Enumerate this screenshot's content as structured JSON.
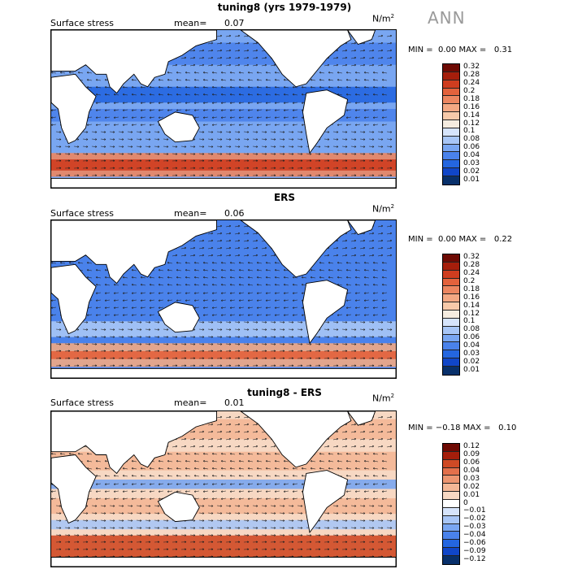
{
  "season_label": "ANN",
  "colors": {
    "positive_scale": [
      "#08306b",
      "#1046c8",
      "#2466e0",
      "#4a82eb",
      "#79a6f1",
      "#a8c6f6",
      "#d6e4fb",
      "#f5ece0",
      "#f7c9a9",
      "#f3a883",
      "#ec8660",
      "#e3623c",
      "#cf3d1f",
      "#a51e0b",
      "#6e0a03"
    ],
    "diff_scale": [
      "#08306b",
      "#1046c8",
      "#2466e0",
      "#4a82eb",
      "#79a6f1",
      "#a8c6f6",
      "#d6e4fb",
      "#ffffff",
      "#f7d8c3",
      "#f3b796",
      "#ec9570",
      "#e3704b",
      "#cf4a25",
      "#a51e0b",
      "#6e0a03"
    ],
    "land": "#ffffff"
  },
  "panels": [
    {
      "title": "tuning8 (yrs 1979-1979)",
      "variable": "Surface stress",
      "mean_label": "mean=",
      "mean_value": "0.07",
      "units": "N/m",
      "units_exp": "2",
      "min_label": "MIN =",
      "min_value": "0.00",
      "max_label": "MAX =",
      "max_value": "0.31",
      "colorbar_ticks": [
        "0.32",
        "0.28",
        "0.24",
        "0.2",
        "0.18",
        "0.16",
        "0.14",
        "0.12",
        "0.1",
        "0.08",
        "0.06",
        "0.04",
        "0.03",
        "0.02",
        "0.01"
      ]
    },
    {
      "title": "ERS",
      "variable": "Surface stress",
      "mean_label": "mean=",
      "mean_value": "0.06",
      "units": "N/m",
      "units_exp": "2",
      "min_label": "MIN =",
      "min_value": "0.00",
      "max_label": "MAX =",
      "max_value": "0.22",
      "colorbar_ticks": [
        "0.32",
        "0.28",
        "0.24",
        "0.2",
        "0.18",
        "0.16",
        "0.14",
        "0.12",
        "0.1",
        "0.08",
        "0.06",
        "0.04",
        "0.03",
        "0.02",
        "0.01"
      ]
    },
    {
      "title": "tuning8 - ERS",
      "variable": "Surface stress",
      "mean_label": "mean=",
      "mean_value": "0.01",
      "units": "N/m",
      "units_exp": "2",
      "min_label": "MIN =",
      "min_value": "−0.18",
      "max_label": "MAX =",
      "max_value": "0.10",
      "colorbar_ticks": [
        "0.12",
        "0.09",
        "0.06",
        "0.04",
        "0.03",
        "0.02",
        "0.01",
        "0",
        "−0.01",
        "−0.02",
        "−0.03",
        "−0.04",
        "−0.06",
        "−0.09",
        "−0.12"
      ]
    }
  ]
}
